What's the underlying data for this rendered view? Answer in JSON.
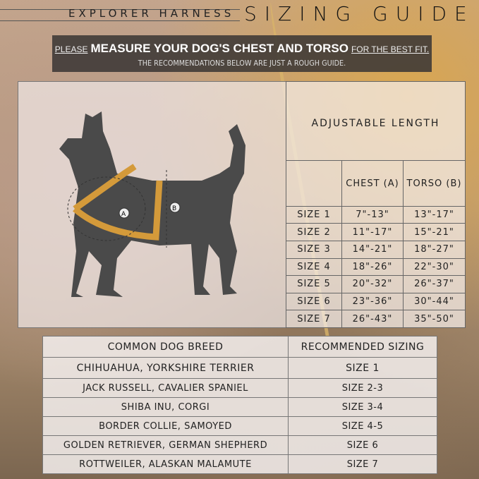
{
  "header": {
    "brand": "EXPLORER HARNESS",
    "title": "SIZING GUIDE"
  },
  "banner": {
    "please": "PLEASE",
    "main": "MEASURE YOUR DOG'S CHEST AND TORSO",
    "fit": "FOR THE BEST FIT.",
    "note": "THE RECOMMENDATIONS BELOW ARE JUST A ROUGH GUIDE."
  },
  "diagram": {
    "label_a": "A",
    "label_b": "B",
    "harness_color": "#d49a3a",
    "dog_color": "#4a4a4a"
  },
  "size_table": {
    "title": "ADJUSTABLE LENGTH",
    "headers": [
      "",
      "CHEST (A)",
      "TORSO (B)"
    ],
    "rows": [
      [
        "SIZE 1",
        "7\"-13\"",
        "13\"-17\""
      ],
      [
        "SIZE 2",
        "11\"-17\"",
        "15\"-21\""
      ],
      [
        "SIZE 3",
        "14\"-21\"",
        "18\"-27\""
      ],
      [
        "SIZE 4",
        "18\"-26\"",
        "22\"-30\""
      ],
      [
        "SIZE 5",
        "20\"-32\"",
        "26\"-37\""
      ],
      [
        "SIZE 6",
        "23\"-36\"",
        "30\"-44\""
      ],
      [
        "SIZE 7",
        "26\"-43\"",
        "35\"-50\""
      ]
    ]
  },
  "breed_table": {
    "headers": [
      "COMMON DOG BREED",
      "RECOMMENDED SIZING"
    ],
    "rows": [
      [
        "CHIHUAHUA, YORKSHIRE TERRIER",
        "SIZE 1"
      ],
      [
        "JACK RUSSELL, CAVALIER SPANIEL",
        "SIZE 2-3"
      ],
      [
        "SHIBA INU, CORGI",
        "SIZE 3-4"
      ],
      [
        "BORDER COLLIE, SAMOYED",
        "SIZE 4-5"
      ],
      [
        "GOLDEN RETRIEVER, GERMAN SHEPHERD",
        "SIZE 6"
      ],
      [
        "ROTTWEILER, ALASKAN MALAMUTE",
        "SIZE 7"
      ]
    ]
  }
}
